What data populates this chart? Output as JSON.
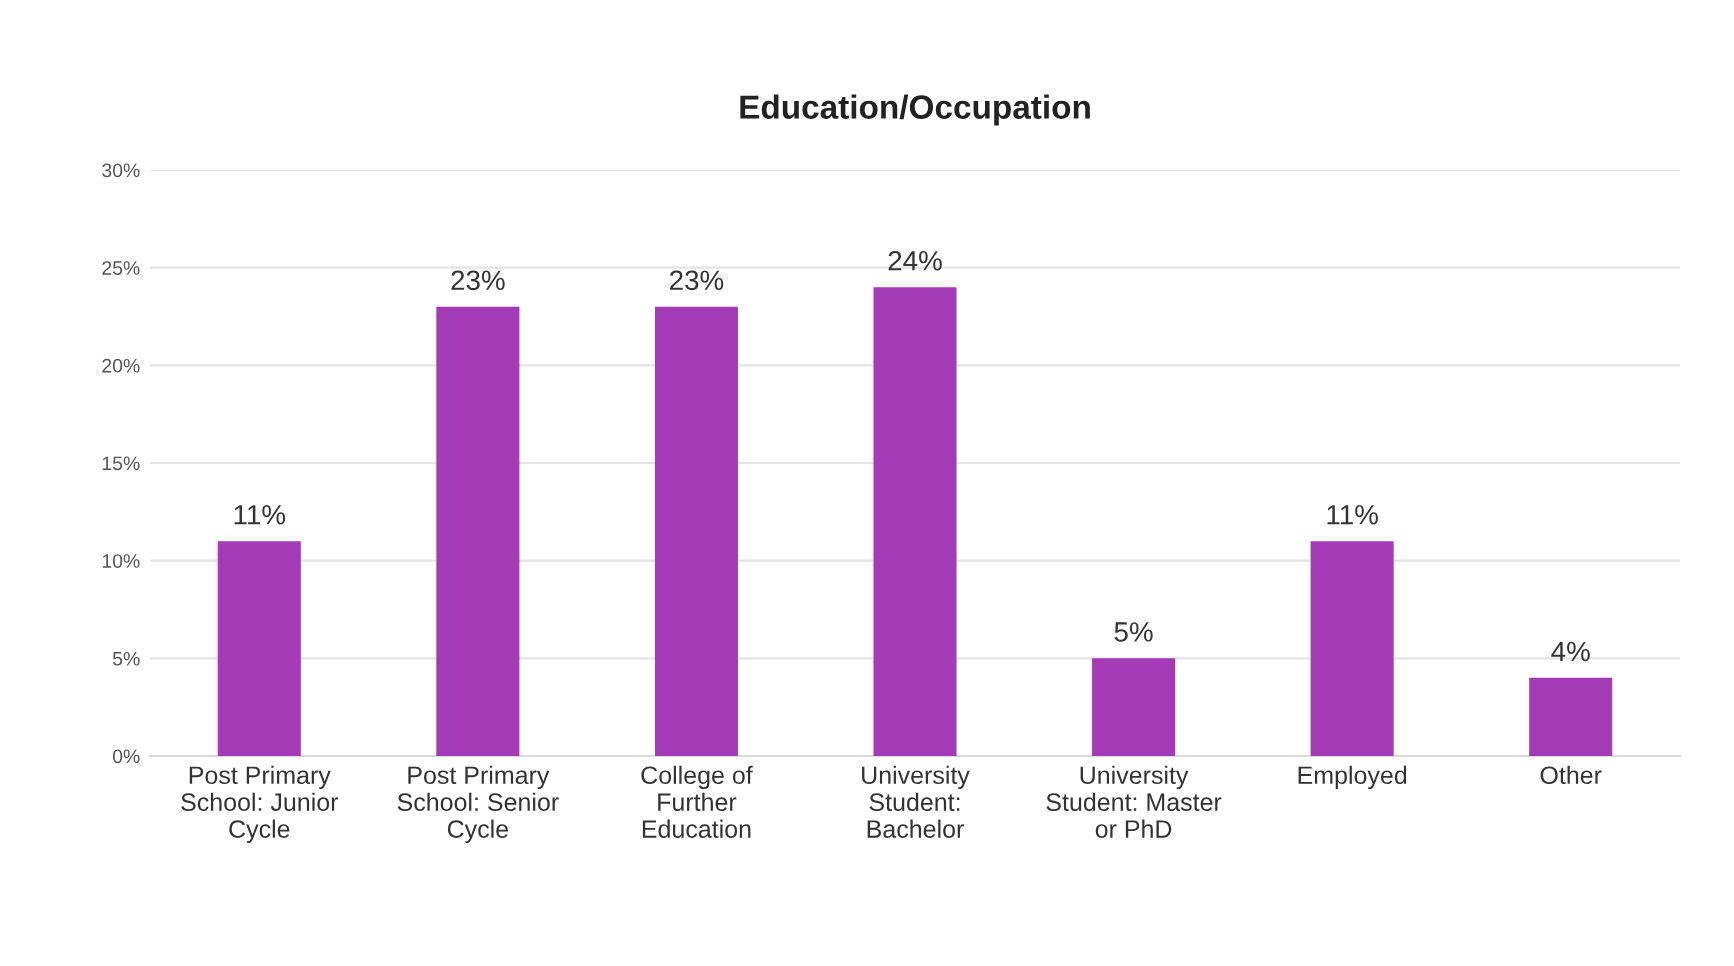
{
  "chart_data": {
    "type": "bar",
    "title": "Education/Occupation",
    "categories": [
      "Post Primary\nSchool: Junior\nCycle",
      "Post Primary\nSchool: Senior\nCycle",
      "College of\nFurther\nEducation",
      "University\nStudent:\nBachelor",
      "University\nStudent: Master\nor PhD",
      "Employed",
      "Other"
    ],
    "values": [
      11,
      23,
      23,
      24,
      5,
      11,
      4
    ],
    "value_labels": [
      "11%",
      "23%",
      "23%",
      "24%",
      "5%",
      "11%",
      "4%"
    ],
    "color": "#a33bb6",
    "ylim": [
      0,
      30
    ],
    "yticks": [
      {
        "value": 0,
        "label": "0%"
      },
      {
        "value": 5,
        "label": "5%"
      },
      {
        "value": 10,
        "label": "10%"
      },
      {
        "value": 15,
        "label": "15%"
      },
      {
        "value": 20,
        "label": "20%"
      },
      {
        "value": 25,
        "label": "25%"
      },
      {
        "value": 30,
        "label": "30%"
      }
    ],
    "grid": "y",
    "legend": false
  }
}
